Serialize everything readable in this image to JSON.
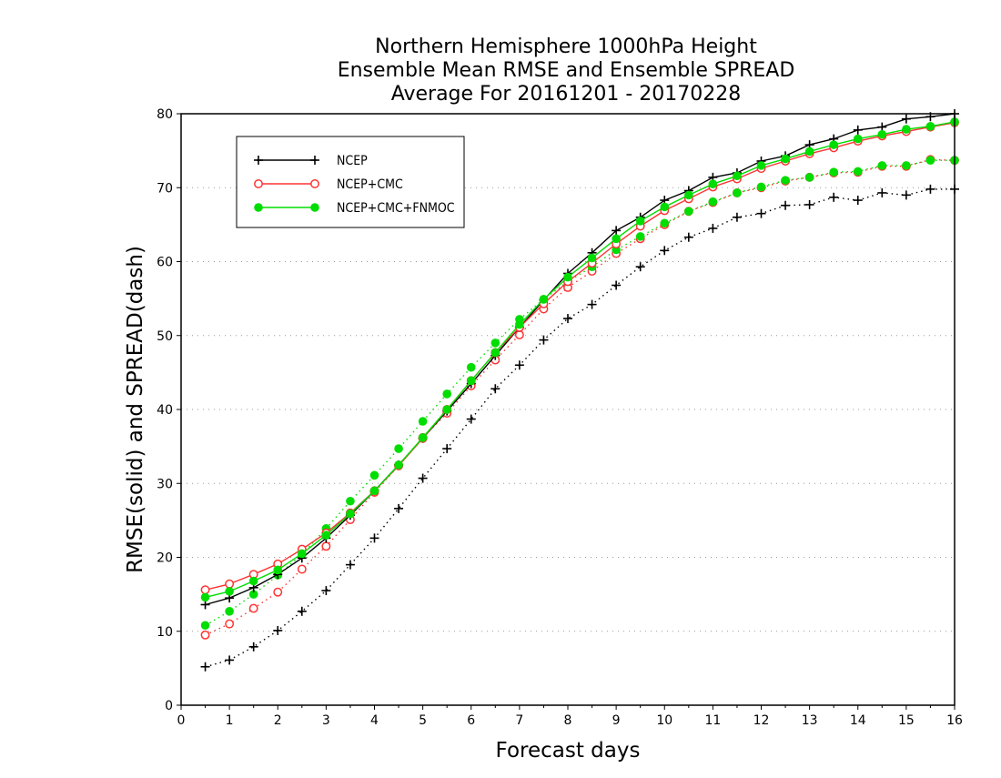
{
  "chart_data": {
    "type": "line",
    "title": [
      "Northern Hemisphere 1000hPa Height",
      "Ensemble Mean RMSE and Ensemble SPREAD",
      "Average For 20161201 - 20170228"
    ],
    "xlabel": "Forecast days",
    "ylabel": "RMSE(solid) and SPREAD(dash)",
    "xlim": [
      0,
      16
    ],
    "ylim": [
      0,
      80
    ],
    "xticks": [
      "0",
      "1",
      "2",
      "3",
      "4",
      "5",
      "6",
      "7",
      "8",
      "9",
      "10",
      "11",
      "12",
      "13",
      "14",
      "15",
      "16"
    ],
    "yticks": [
      "0",
      "10",
      "20",
      "30",
      "40",
      "50",
      "60",
      "70",
      "80"
    ],
    "grid": "horizontal dotted",
    "legend_position": "top-left",
    "x": [
      0.5,
      1,
      1.5,
      2,
      2.5,
      3,
      3.5,
      4,
      4.5,
      5,
      5.5,
      6,
      6.5,
      7,
      7.5,
      8,
      8.5,
      9,
      9.5,
      10,
      10.5,
      11,
      11.5,
      12,
      12.5,
      13,
      13.5,
      14,
      14.5,
      15,
      15.5,
      16
    ],
    "series": [
      {
        "name": "NCEP",
        "metric": "RMSE",
        "style": "solid",
        "marker": "plus",
        "color": "#000000",
        "values": [
          13.6,
          14.5,
          15.9,
          17.7,
          19.9,
          22.6,
          25.7,
          29.0,
          32.5,
          36.1,
          39.8,
          43.5,
          47.3,
          51.1,
          54.8,
          58.4,
          61.2,
          64.2,
          66.0,
          68.3,
          69.6,
          71.4,
          72.0,
          73.6,
          74.3,
          75.8,
          76.6,
          77.8,
          78.2,
          79.3,
          79.6,
          80.0
        ]
      },
      {
        "name": "NCEP+CMC",
        "metric": "RMSE",
        "style": "solid",
        "marker": "open-circle",
        "color": "#ff3333",
        "values": [
          15.6,
          16.4,
          17.7,
          19.1,
          21.1,
          23.3,
          26.0,
          29.0,
          32.4,
          36.1,
          40.0,
          43.9,
          47.7,
          51.1,
          54.3,
          57.3,
          59.8,
          62.4,
          64.8,
          66.9,
          68.5,
          70.1,
          71.2,
          72.6,
          73.6,
          74.6,
          75.4,
          76.3,
          77.0,
          77.6,
          78.2,
          78.8
        ]
      },
      {
        "name": "NCEP+CMC+FNMOC",
        "metric": "RMSE",
        "style": "solid",
        "marker": "filled-circle",
        "color": "#00dd00",
        "values": [
          14.6,
          15.4,
          16.8,
          18.3,
          20.5,
          23.0,
          25.9,
          29.0,
          32.5,
          36.2,
          40.0,
          43.9,
          47.7,
          51.5,
          54.9,
          57.9,
          60.5,
          63.1,
          65.5,
          67.4,
          69.0,
          70.5,
          71.6,
          73.0,
          73.9,
          74.9,
          75.8,
          76.6,
          77.2,
          77.9,
          78.3,
          78.9
        ]
      },
      {
        "name": "NCEP",
        "metric": "SPREAD",
        "style": "dotted",
        "marker": "plus",
        "color": "#000000",
        "values": [
          5.2,
          6.1,
          7.9,
          10.1,
          12.7,
          15.5,
          19.0,
          22.6,
          26.6,
          30.7,
          34.7,
          38.7,
          42.8,
          46.0,
          49.4,
          52.3,
          54.2,
          56.8,
          59.3,
          61.5,
          63.3,
          64.5,
          66.0,
          66.5,
          67.6,
          67.7,
          68.7,
          68.3,
          69.3,
          69.0,
          69.8,
          69.8
        ]
      },
      {
        "name": "NCEP+CMC",
        "metric": "SPREAD",
        "style": "dotted",
        "marker": "open-circle",
        "color": "#ff3333",
        "values": [
          9.5,
          11.0,
          13.1,
          15.3,
          18.4,
          21.5,
          25.1,
          28.8,
          32.4,
          36.2,
          39.5,
          43.2,
          46.7,
          50.1,
          53.6,
          56.5,
          58.7,
          61.1,
          63.1,
          65.0,
          66.8,
          68.0,
          69.3,
          70.0,
          70.9,
          71.4,
          72.0,
          72.1,
          72.9,
          72.9,
          73.8,
          73.7
        ]
      },
      {
        "name": "NCEP+CMC+FNMOC",
        "metric": "SPREAD",
        "style": "dotted",
        "marker": "filled-circle",
        "color": "#00dd00",
        "values": [
          10.8,
          12.7,
          15.0,
          17.6,
          20.4,
          23.9,
          27.6,
          31.1,
          34.7,
          38.4,
          42.1,
          45.7,
          49.0,
          52.2,
          54.9,
          57.3,
          59.3,
          61.6,
          63.4,
          65.2,
          66.8,
          68.1,
          69.3,
          70.1,
          71.0,
          71.4,
          72.1,
          72.2,
          73.0,
          73.0,
          73.7,
          73.7
        ]
      }
    ]
  }
}
